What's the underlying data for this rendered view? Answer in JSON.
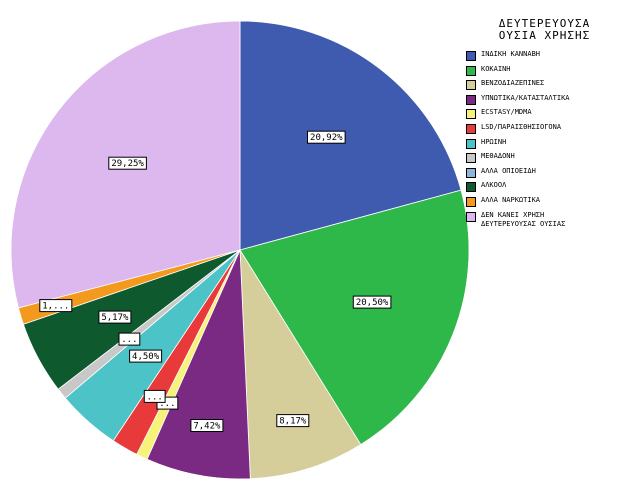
{
  "chart_data": {
    "type": "pie",
    "title": "ΔΕΥΤΕΡΕΥΟΥΣΑ ΟΥΣΙΑ ΧΡΗΣΗΣ",
    "legend_title_lines": [
      "ΔΕΥΤΕΡΕΥΟΥΣΑ",
      "ΟΥΣΙΑ ΧΡΗΣΗΣ"
    ],
    "legend_position": "right",
    "slices": [
      {
        "name": "ΙΝΔΙΚΗ ΚΑΝΝΑΒΗ",
        "value": 20.92,
        "label": "20,92%",
        "color": "#3f5bb0"
      },
      {
        "name": "ΚΟΚΑΙΝΗ",
        "value": 20.5,
        "label": "20,50%",
        "color": "#2fb84a"
      },
      {
        "name": "ΒΕΝΖΟΔΙΑΖΕΠΙΝΕΣ",
        "value": 8.17,
        "label": "8,17%",
        "color": "#d5cd9a"
      },
      {
        "name": "ΥΠΝΩΤΙΚΑ/ΚΑΤΑΣΤΑΛΤΙΚΑ",
        "value": 7.42,
        "label": "7,42%",
        "color": "#7b2a83"
      },
      {
        "name": "ECSTASY/MDMA",
        "value": 0.8,
        "label": "...",
        "color": "#f7f27a"
      },
      {
        "name": "LSD/ΠΑΡΑΙΣΘΗΣΙΟΓΟΝΑ",
        "value": 1.9,
        "label": "...",
        "color": "#e83a3a"
      },
      {
        "name": "ΗΡΩΙΝΗ",
        "value": 4.5,
        "label": "4,50%",
        "color": "#4cc3c6"
      },
      {
        "name": "ΜΕΘΑΔΟΝΗ",
        "value": 0.8,
        "label": "...",
        "color": "#c8c8c8"
      },
      {
        "name": "ΑΛΛΑ ΟΠΙΟΕΙΔΗ",
        "value": 0.0,
        "label": "",
        "color": "#8fb4d9"
      },
      {
        "name": "ΑΛΚΟΟΛ",
        "value": 5.17,
        "label": "5,17%",
        "color": "#0e5a2e"
      },
      {
        "name": "ΑΛΛΑ ΝΑΡΚΩΤΙΚΑ",
        "value": 1.2,
        "label": "1,...",
        "color": "#f39a1e"
      },
      {
        "name": "ΔΕΝ ΚΑΝΕΙ ΧΡΗΣΗ\nΔΕΥΤΕΡΕΥΟΥΣΑΣ ΟΥΣΙΑΣ",
        "value": 29.25,
        "label": "29,25%",
        "color": "#dcb8ef"
      }
    ]
  }
}
